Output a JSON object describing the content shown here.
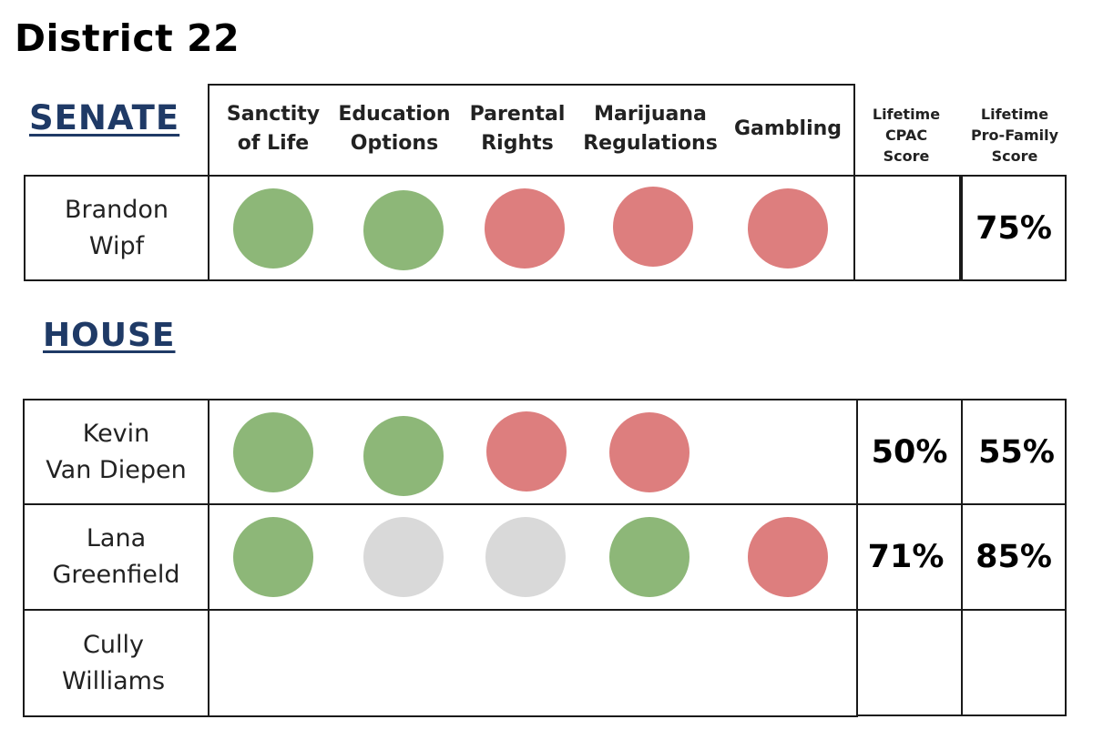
{
  "title": "District 22",
  "senate": {
    "heading": "SENATE",
    "columns": [
      "Sanctity of Life",
      "Education Options",
      "Parental Rights",
      "Marijuana Regulations",
      "Gambling"
    ],
    "column_lines": [
      [
        "Sanctity",
        "of Life"
      ],
      [
        "Education",
        "Options"
      ],
      [
        "Parental",
        "Rights"
      ],
      [
        "Marijuana",
        "Regulations"
      ],
      [
        "Gambling"
      ]
    ],
    "score_columns": [
      [
        "Lifetime",
        "CPAC",
        "Score"
      ],
      [
        "Lifetime",
        "Pro-Family",
        "Score"
      ]
    ],
    "rows": [
      {
        "name_lines": [
          "Brandon",
          "Wipf"
        ],
        "ratings": [
          "green",
          "green",
          "red",
          "red",
          "red"
        ],
        "cpac": "",
        "pro_family": "75%"
      }
    ]
  },
  "house": {
    "heading": "HOUSE",
    "rows": [
      {
        "name_lines": [
          "Kevin",
          "Van Diepen"
        ],
        "ratings": [
          "green",
          "green",
          "red",
          "red",
          ""
        ],
        "cpac": "50%",
        "pro_family": "55%"
      },
      {
        "name_lines": [
          "Lana",
          "Greenfield"
        ],
        "ratings": [
          "green",
          "gray",
          "gray",
          "green",
          "red"
        ],
        "cpac": "71%",
        "pro_family": "85%"
      },
      {
        "name_lines": [
          "Cully",
          "Williams"
        ],
        "ratings": [
          "",
          "",
          "",
          "",
          ""
        ],
        "cpac": "",
        "pro_family": ""
      }
    ]
  },
  "colors": {
    "support": "#8db778",
    "oppose": "#dd7e7e",
    "no_vote": "#d9d9d9",
    "heading": "#1f3a66"
  }
}
